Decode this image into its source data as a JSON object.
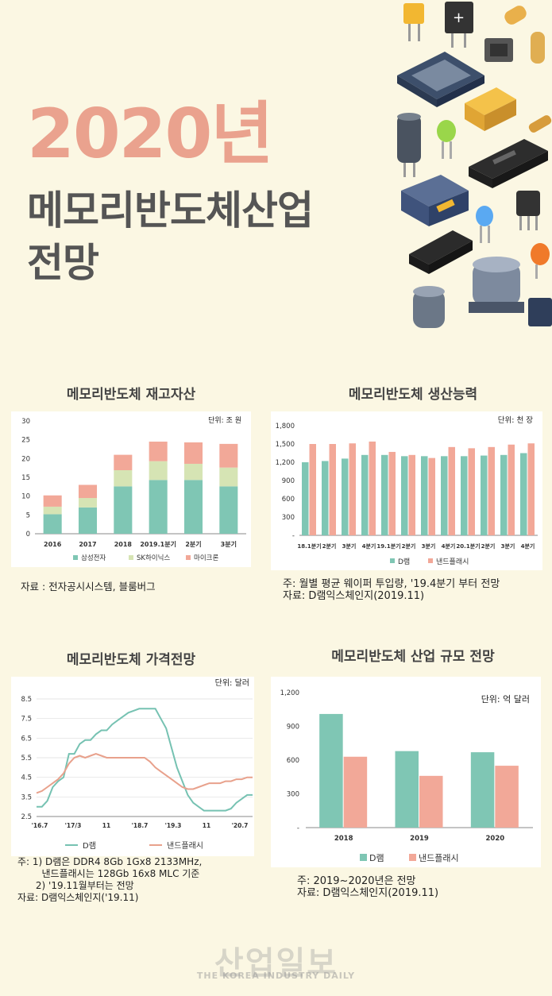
{
  "header": {
    "year_title": "2020년",
    "line1": "메모리반도체산업",
    "line2": "전망"
  },
  "colors": {
    "teal": "#7fc6b4",
    "green": "#d6e4b4",
    "salmon": "#f2a898",
    "dram_line": "#76c2b2",
    "nand_line": "#e8a18c"
  },
  "charts": [
    {
      "type": "bar",
      "stacked": true,
      "title": "메모리반도체 재고자산",
      "unit": "단위: 조 원",
      "categories": [
        "2016",
        "2017",
        "2018",
        "2019.1분기",
        "2분기",
        "3분기"
      ],
      "series": [
        {
          "name": "삼성전자",
          "values": [
            5.2,
            7.0,
            12.6,
            14.3,
            14.3,
            12.6
          ]
        },
        {
          "name": "SK하이닉스",
          "values": [
            2.0,
            2.5,
            4.3,
            5.0,
            4.3,
            5.0
          ]
        },
        {
          "name": "마이크론",
          "values": [
            3.0,
            3.5,
            4.1,
            5.2,
            5.7,
            6.3
          ]
        }
      ],
      "yticks": [
        "0",
        "5",
        "10",
        "15",
        "20",
        "25",
        "30"
      ],
      "ylim": [
        0,
        30
      ],
      "note": "자료 : 전자공시시스템, 블룸버그"
    },
    {
      "type": "bar",
      "title": "메모리반도체 생산능력",
      "unit": "단위: 천 장",
      "categories": [
        "18.1분기",
        "2분기",
        "3분기",
        "4분기",
        "19.1분기",
        "2분기",
        "3분기",
        "4분기",
        "20.1분기",
        "2분기",
        "3분기",
        "4분기"
      ],
      "series": [
        {
          "name": "D램",
          "values": [
            1200,
            1220,
            1260,
            1320,
            1320,
            1300,
            1300,
            1300,
            1300,
            1310,
            1320,
            1350
          ]
        },
        {
          "name": "낸드플래시",
          "values": [
            1500,
            1500,
            1510,
            1540,
            1370,
            1320,
            1270,
            1450,
            1430,
            1450,
            1490,
            1510
          ]
        }
      ],
      "yticks": [
        "-",
        "300",
        "600",
        "900",
        "1,200",
        "1,500",
        "1,800"
      ],
      "ylim": [
        0,
        1800
      ],
      "note": "주: 월별 평균 웨이퍼 투입량, '19.4분기 부터 전망\n자료: D램익스체인지(2019.11)"
    },
    {
      "type": "line",
      "title": "메모리반도체 가격전망",
      "unit": "단위: 달러",
      "xticks": [
        "'16.7",
        "'17/3",
        "11",
        "'18.7",
        "'19.3",
        "11",
        "'20.7"
      ],
      "yticks": [
        "2.5",
        "3.5",
        "4.5",
        "5.5",
        "6.5",
        "7.5",
        "8.5"
      ],
      "ylim": [
        2.5,
        8.5
      ],
      "series": [
        {
          "name": "D램",
          "values": [
            3.0,
            3.0,
            3.3,
            4.0,
            4.3,
            4.5,
            5.7,
            5.7,
            6.2,
            6.4,
            6.4,
            6.7,
            6.9,
            6.9,
            7.2,
            7.4,
            7.6,
            7.8,
            7.9,
            8.0,
            8.0,
            8.0,
            8.0,
            7.5,
            7.0,
            6.0,
            5.0,
            4.3,
            3.6,
            3.2,
            3.0,
            2.8,
            2.8,
            2.8,
            2.8,
            2.8,
            2.9,
            3.2,
            3.4,
            3.6,
            3.6
          ]
        },
        {
          "name": "낸드플래시",
          "values": [
            3.7,
            3.8,
            4.0,
            4.2,
            4.4,
            4.7,
            5.2,
            5.5,
            5.6,
            5.5,
            5.6,
            5.7,
            5.6,
            5.5,
            5.5,
            5.5,
            5.5,
            5.5,
            5.5,
            5.5,
            5.5,
            5.3,
            5.0,
            4.8,
            4.6,
            4.4,
            4.2,
            4.0,
            3.9,
            3.9,
            4.0,
            4.1,
            4.2,
            4.2,
            4.2,
            4.3,
            4.3,
            4.4,
            4.4,
            4.5,
            4.5
          ]
        }
      ],
      "note": "주: 1) D램은 DDR4 8Gb 1Gx8 2133MHz,\n        낸드플래시는 128Gb 16x8 MLC 기준\n      2) '19.11월부터는 전망\n자료: D램익스체인지('19.11)"
    },
    {
      "type": "bar",
      "title": "메모리반도체 산업 규모 전망",
      "unit": "단위: 억 달러",
      "categories": [
        "2018",
        "2019",
        "2020"
      ],
      "series": [
        {
          "name": "D램",
          "values": [
            1010,
            680,
            670
          ]
        },
        {
          "name": "낸드플래시",
          "values": [
            630,
            460,
            550
          ]
        }
      ],
      "yticks": [
        "-",
        "300",
        "600",
        "900",
        "1,200"
      ],
      "ylim": [
        0,
        1200
      ],
      "note": "주: 2019~2020년은 전망\n자료: D램익스체인지(2019.11)"
    }
  ],
  "chart_data": [
    {
      "type": "bar",
      "title": "메모리반도체 재고자산",
      "categories": [
        "2016",
        "2017",
        "2018",
        "2019.1분기",
        "2분기",
        "3분기"
      ],
      "series": [
        {
          "name": "삼성전자",
          "values": [
            5.2,
            7.0,
            12.6,
            14.3,
            14.3,
            12.6
          ]
        },
        {
          "name": "SK하이닉스",
          "values": [
            2.0,
            2.5,
            4.3,
            5.0,
            4.3,
            5.0
          ]
        },
        {
          "name": "마이크론",
          "values": [
            3.0,
            3.5,
            4.1,
            5.2,
            5.7,
            6.3
          ]
        }
      ],
      "ylim": [
        0,
        30
      ],
      "ylabel": "단위: 조 원"
    },
    {
      "type": "bar",
      "title": "메모리반도체 생산능력",
      "categories": [
        "18.1분기",
        "2분기",
        "3분기",
        "4분기",
        "19.1분기",
        "2분기",
        "3분기",
        "4분기",
        "20.1분기",
        "2분기",
        "3분기",
        "4분기"
      ],
      "series": [
        {
          "name": "D램",
          "values": [
            1200,
            1220,
            1260,
            1320,
            1320,
            1300,
            1300,
            1300,
            1300,
            1310,
            1320,
            1350
          ]
        },
        {
          "name": "낸드플래시",
          "values": [
            1500,
            1500,
            1510,
            1540,
            1370,
            1320,
            1270,
            1450,
            1430,
            1450,
            1490,
            1510
          ]
        }
      ],
      "ylim": [
        0,
        1800
      ],
      "ylabel": "단위: 천 장"
    },
    {
      "type": "line",
      "title": "메모리반도체 가격전망",
      "series": [
        {
          "name": "D램"
        },
        {
          "name": "낸드플래시"
        }
      ],
      "ylim": [
        2.5,
        8.5
      ],
      "ylabel": "단위: 달러"
    },
    {
      "type": "bar",
      "title": "메모리반도체 산업 규모 전망",
      "categories": [
        "2018",
        "2019",
        "2020"
      ],
      "series": [
        {
          "name": "D램",
          "values": [
            1010,
            680,
            670
          ]
        },
        {
          "name": "낸드플래시",
          "values": [
            630,
            460,
            550
          ]
        }
      ],
      "ylim": [
        0,
        1200
      ],
      "ylabel": "단위: 억 달러"
    }
  ],
  "footer": {
    "logo": "산업일보",
    "logo_sub": "THE KOREA INDUSTRY DAILY"
  }
}
